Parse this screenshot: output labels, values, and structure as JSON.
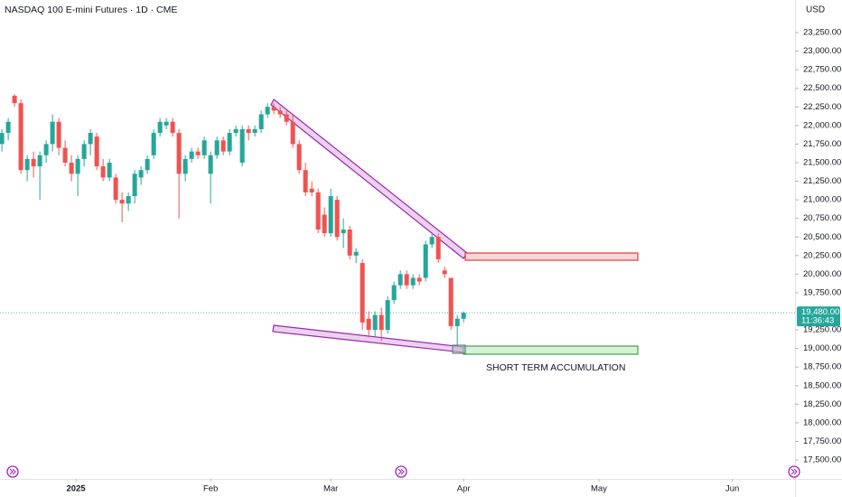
{
  "chart_data": {
    "type": "candlestick",
    "title": "NASDAQ 100 E-mini Futures · 1D · CME",
    "currency": "USD",
    "annotation": "SHORT TERM ACCUMULATION",
    "up_color": "#26a69a",
    "down_color": "#ef5350",
    "grid": false,
    "x": [
      0,
      1,
      2,
      3,
      4,
      5,
      6,
      7,
      8,
      9,
      10,
      11,
      12,
      13,
      14,
      15,
      16,
      17,
      18,
      19,
      20,
      21,
      22,
      23,
      24,
      25,
      26,
      27,
      28,
      29,
      30,
      31,
      32,
      33,
      34,
      35,
      36,
      37,
      38,
      39,
      40,
      41,
      42,
      43,
      44,
      45,
      46,
      47,
      48,
      49,
      50,
      51,
      52,
      53,
      54,
      55,
      56,
      57,
      58,
      59,
      60,
      61,
      62,
      63,
      64,
      65,
      66,
      67,
      68,
      69,
      70,
      71,
      72,
      73
    ],
    "open": [
      21750,
      21900,
      22400,
      22300,
      21400,
      21550,
      21450,
      21600,
      21750,
      22050,
      21700,
      21500,
      21350,
      21550,
      21750,
      21850,
      21450,
      21300,
      21300,
      21000,
      20950,
      21050,
      21300,
      21400,
      21600,
      21900,
      22000,
      22050,
      21900,
      21350,
      21550,
      21650,
      21600,
      21350,
      21600,
      21800,
      21650,
      21900,
      21500,
      21950,
      21900,
      21950,
      22150,
      22250,
      22200,
      22150,
      22050,
      21750,
      21400,
      21150,
      21100,
      20800,
      20550,
      21000,
      20550,
      20600,
      20250,
      20150,
      19400,
      19250,
      19450,
      19250,
      19650,
      19850,
      20000,
      19850,
      19950,
      19950,
      20400,
      20500,
      20050,
      19950,
      19300,
      19400
    ],
    "high": [
      21950,
      22100,
      22420,
      22350,
      21600,
      21650,
      21650,
      21800,
      22150,
      22100,
      21800,
      21600,
      21600,
      21800,
      21950,
      21900,
      21550,
      21550,
      21350,
      21100,
      21100,
      21400,
      21450,
      21600,
      21950,
      22100,
      22100,
      22100,
      21950,
      21600,
      21700,
      21700,
      21850,
      21650,
      21850,
      21850,
      21950,
      22000,
      22000,
      22000,
      22000,
      22200,
      22300,
      22300,
      22250,
      22200,
      22150,
      21800,
      21500,
      21250,
      21150,
      20900,
      21150,
      21050,
      20750,
      20650,
      20350,
      20200,
      19500,
      19500,
      19550,
      19700,
      19900,
      20050,
      20050,
      20000,
      20000,
      20450,
      20550,
      20550,
      20100,
      19950,
      19450,
      19500
    ],
    "low": [
      21650,
      21800,
      22250,
      21350,
      21250,
      21300,
      21000,
      21500,
      21650,
      21600,
      21450,
      21250,
      21050,
      21450,
      21600,
      21400,
      21250,
      21250,
      20950,
      20700,
      20850,
      20950,
      21200,
      21350,
      21550,
      21850,
      21950,
      21850,
      20750,
      21250,
      21500,
      21550,
      21550,
      20950,
      21550,
      21600,
      21600,
      21850,
      21450,
      21800,
      21850,
      21900,
      22100,
      22150,
      22100,
      22000,
      21700,
      21350,
      21050,
      21050,
      20550,
      20500,
      20500,
      20450,
      20350,
      20200,
      20150,
      19250,
      19150,
      19150,
      19100,
      19200,
      19600,
      19800,
      19800,
      19800,
      19850,
      19900,
      20350,
      20150,
      19950,
      19250,
      19050,
      19350
    ],
    "close": [
      21900,
      22050,
      22300,
      21400,
      21550,
      21450,
      21600,
      21750,
      22050,
      21700,
      21500,
      21350,
      21550,
      21750,
      21900,
      21450,
      21300,
      21500,
      21000,
      20950,
      21050,
      21350,
      21400,
      21550,
      21900,
      22050,
      22050,
      21900,
      21350,
      21550,
      21650,
      21600,
      21800,
      21600,
      21800,
      21650,
      21900,
      21950,
      21950,
      21900,
      21950,
      22150,
      22250,
      22200,
      22150,
      22050,
      21750,
      21400,
      21100,
      21100,
      20600,
      20550,
      21050,
      20500,
      20600,
      20250,
      20300,
      19350,
      19250,
      19450,
      19250,
      19650,
      19850,
      20000,
      19850,
      19950,
      19900,
      20400,
      20500,
      20200,
      20000,
      19300,
      19400,
      19480
    ],
    "last_price": {
      "value": 19480,
      "label": "19,480.00"
    },
    "countdown": "11:36:43",
    "xlim": [
      -0.3,
      125.4
    ],
    "xticks": [
      {
        "value": 11.7,
        "label": "2025"
      },
      {
        "value": 33,
        "label": "Feb"
      },
      {
        "value": 52,
        "label": "Mar"
      },
      {
        "value": 73,
        "label": "Apr"
      },
      {
        "value": 94.4,
        "label": "May"
      },
      {
        "value": 115.5,
        "label": "Jun"
      }
    ],
    "ylim": [
      17245,
      23688
    ],
    "yticks": [
      {
        "value": 17500,
        "label": "17,500.00"
      },
      {
        "value": 17750,
        "label": "17,750.00"
      },
      {
        "value": 18000,
        "label": "18,000.00"
      },
      {
        "value": 18250,
        "label": "18,250.00"
      },
      {
        "value": 18500,
        "label": "18,500.00"
      },
      {
        "value": 18750,
        "label": "18,750.00"
      },
      {
        "value": 19000,
        "label": "19,000.00"
      },
      {
        "value": 19250,
        "label": "19,250.00"
      },
      {
        "value": 19750,
        "label": "19,750.00"
      },
      {
        "value": 20000,
        "label": "20,000.00"
      },
      {
        "value": 20250,
        "label": "20,250.00"
      },
      {
        "value": 20500,
        "label": "20,500.00"
      },
      {
        "value": 20750,
        "label": "20,750.00"
      },
      {
        "value": 21000,
        "label": "21,000.00"
      },
      {
        "value": 21250,
        "label": "21,250.00"
      },
      {
        "value": 21500,
        "label": "21,500.00"
      },
      {
        "value": 21750,
        "label": "21,750.00"
      },
      {
        "value": 22000,
        "label": "22,000.00"
      },
      {
        "value": 22250,
        "label": "22,250.00"
      },
      {
        "value": 22500,
        "label": "22,500.00"
      },
      {
        "value": 22750,
        "label": "22,750.00"
      },
      {
        "value": 23000,
        "label": "23,000.00"
      },
      {
        "value": 23250,
        "label": "23,250.00"
      }
    ]
  }
}
